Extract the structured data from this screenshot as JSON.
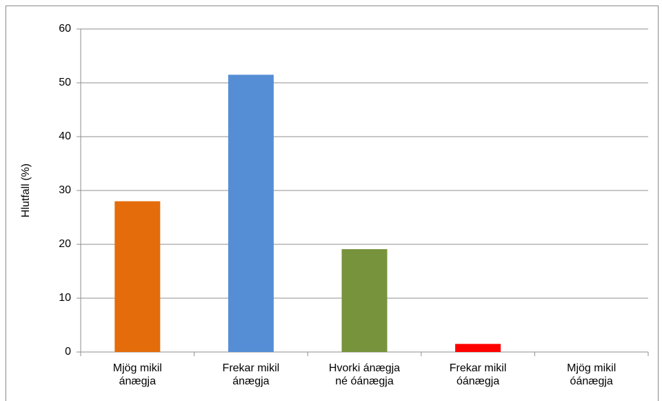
{
  "chart_data": {
    "type": "bar",
    "y_label": "Hlutfall (%)",
    "categories": [
      "Mjög mikil ánægja",
      "Frekar mikil ánægja",
      "Hvorki ánægja né óánægja",
      "Frekar mikil óánægja",
      "Mjög mikil óánægja"
    ],
    "values": [
      28,
      51.5,
      19.1,
      1.5,
      0
    ],
    "colors": [
      "#e46c0a",
      "#558ed5",
      "#77933c",
      "#ff0000",
      "#8064a2"
    ],
    "ylim": [
      0,
      60
    ],
    "yticks": [
      0,
      10,
      20,
      30,
      40,
      50,
      60
    ],
    "grid": true
  }
}
